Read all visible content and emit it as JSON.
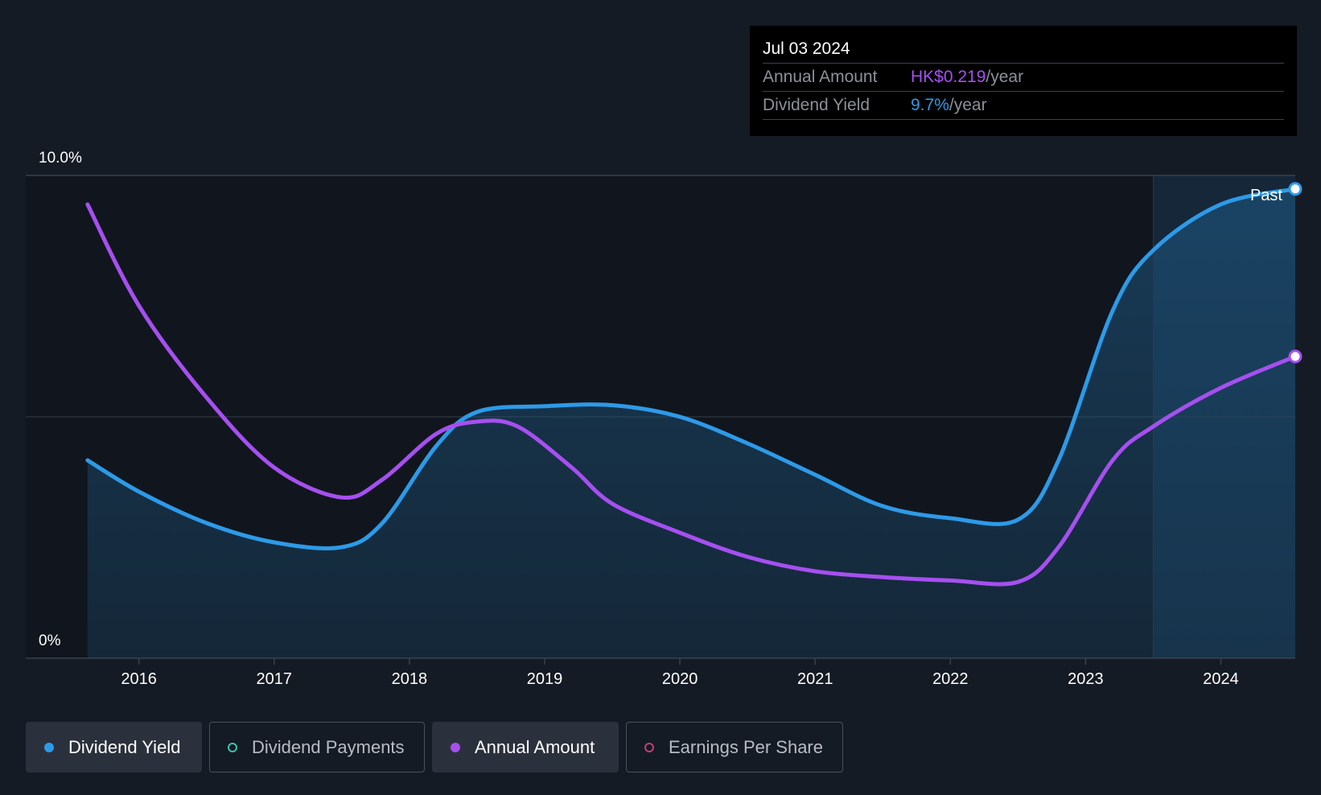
{
  "tooltip": {
    "date": "Jul 03 2024",
    "annual_amount_label": "Annual Amount",
    "annual_amount_value": "HK$0.219",
    "annual_amount_unit": "/year",
    "dividend_yield_label": "Dividend Yield",
    "dividend_yield_value": "9.7%",
    "dividend_yield_unit": "/year"
  },
  "past_label": "Past",
  "legend": [
    {
      "label": "Dividend Yield",
      "color": "#2d9ae8",
      "active": true
    },
    {
      "label": "Dividend Payments",
      "color": "#3fc1b0",
      "active": false
    },
    {
      "label": "Annual Amount",
      "color": "#a64ff0",
      "active": true
    },
    {
      "label": "Earnings Per Share",
      "color": "#c23d78",
      "active": false
    }
  ],
  "colors": {
    "background": "#151b24",
    "dividend_yield": "#2d9ae8",
    "annual_amount": "#a64ff0"
  },
  "chart_data": {
    "type": "line",
    "y_tick_labels": [
      "10.0%",
      "0%"
    ],
    "x_tick_labels": [
      "2016",
      "2017",
      "2018",
      "2019",
      "2020",
      "2021",
      "2022",
      "2023",
      "2024"
    ],
    "ylim": [
      0,
      10
    ],
    "xlim": [
      2015.55,
      2024.55
    ],
    "forecast_region_start": 2023.5,
    "series": [
      {
        "name": "Dividend Yield",
        "color": "#2d9ae8",
        "area": true,
        "points": [
          [
            2015.62,
            4.1
          ],
          [
            2016.0,
            3.45
          ],
          [
            2016.5,
            2.8
          ],
          [
            2017.0,
            2.4
          ],
          [
            2017.5,
            2.3
          ],
          [
            2017.8,
            2.8
          ],
          [
            2018.2,
            4.4
          ],
          [
            2018.5,
            5.1
          ],
          [
            2019.0,
            5.22
          ],
          [
            2019.5,
            5.24
          ],
          [
            2020.0,
            5.0
          ],
          [
            2020.5,
            4.45
          ],
          [
            2021.0,
            3.8
          ],
          [
            2021.5,
            3.15
          ],
          [
            2022.0,
            2.9
          ],
          [
            2022.5,
            2.87
          ],
          [
            2022.8,
            4.1
          ],
          [
            2023.2,
            7.2
          ],
          [
            2023.5,
            8.45
          ],
          [
            2024.0,
            9.4
          ],
          [
            2024.55,
            9.72
          ]
        ]
      },
      {
        "name": "Annual Amount",
        "color": "#a64ff0",
        "area": false,
        "points": [
          [
            2015.62,
            9.4
          ],
          [
            2016.0,
            7.3
          ],
          [
            2016.5,
            5.4
          ],
          [
            2017.0,
            3.95
          ],
          [
            2017.5,
            3.33
          ],
          [
            2017.8,
            3.7
          ],
          [
            2018.2,
            4.65
          ],
          [
            2018.5,
            4.9
          ],
          [
            2018.8,
            4.8
          ],
          [
            2019.2,
            3.95
          ],
          [
            2019.5,
            3.2
          ],
          [
            2020.0,
            2.6
          ],
          [
            2020.5,
            2.1
          ],
          [
            2021.0,
            1.8
          ],
          [
            2021.5,
            1.68
          ],
          [
            2022.0,
            1.61
          ],
          [
            2022.5,
            1.58
          ],
          [
            2022.8,
            2.3
          ],
          [
            2023.2,
            4.1
          ],
          [
            2023.5,
            4.8
          ],
          [
            2024.0,
            5.6
          ],
          [
            2024.55,
            6.25
          ]
        ]
      }
    ]
  }
}
